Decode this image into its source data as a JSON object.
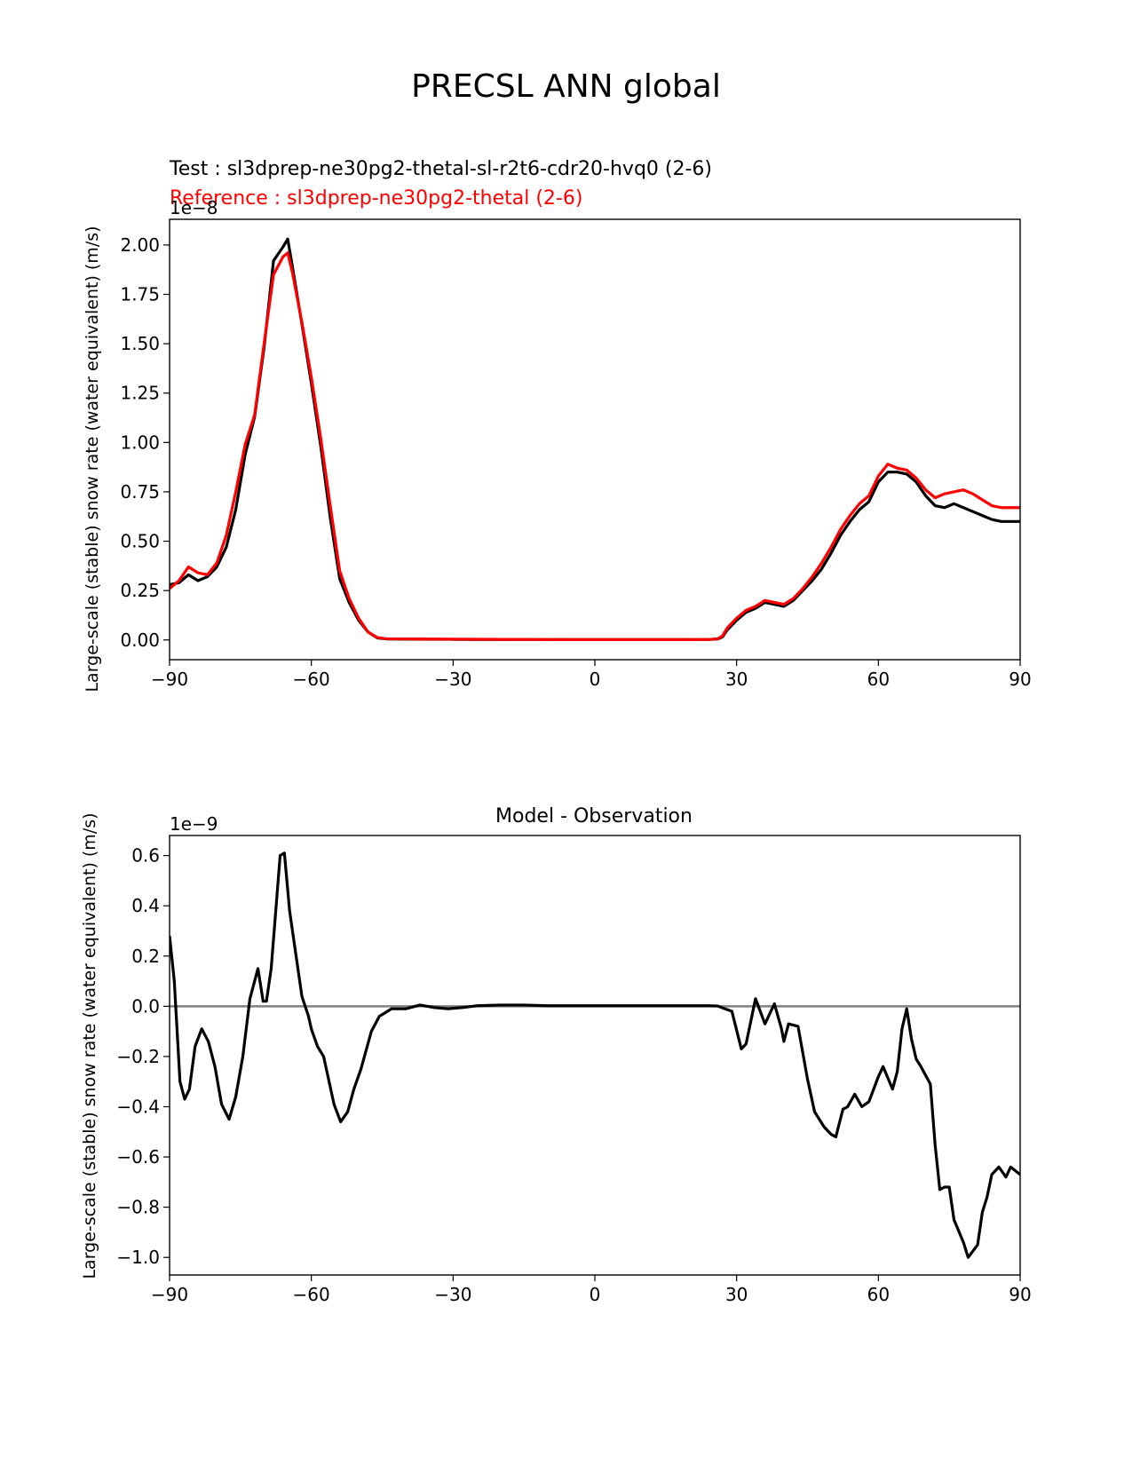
{
  "figure": {
    "title": "PRECSL ANN global"
  },
  "colors": {
    "test": "#000000",
    "reference": "#ff0000",
    "diff": "#000000",
    "zero_line": "#808080"
  },
  "chart_data": [
    {
      "type": "line",
      "test_label": "Test : sl3dprep-ne30pg2-thetal-sl-r2t6-cdr20-hvq0 (2-6)",
      "reference_label": "Reference : sl3dprep-ne30pg2-thetal (2-6)",
      "ylabel": "Large-scale (stable) snow rate (water equivalent) (m/s)",
      "offset_label": "1e−8",
      "xlim": [
        -90,
        90
      ],
      "ylim": [
        -0.1,
        2.13
      ],
      "xticks": [
        -90,
        -60,
        -30,
        0,
        30,
        60,
        90
      ],
      "xtick_labels": [
        "−90",
        "−60",
        "−30",
        "0",
        "30",
        "60",
        "90"
      ],
      "yticks": [
        0.0,
        0.25,
        0.5,
        0.75,
        1.0,
        1.25,
        1.5,
        1.75,
        2.0
      ],
      "ytick_labels": [
        "0.00",
        "0.25",
        "0.50",
        "0.75",
        "1.00",
        "1.25",
        "1.50",
        "1.75",
        "2.00"
      ],
      "series": [
        {
          "name": "Test",
          "x": [
            -90,
            -88,
            -86,
            -84,
            -82,
            -80,
            -78,
            -76,
            -74,
            -72,
            -70,
            -68,
            -66,
            -65,
            -64,
            -62,
            -60,
            -58,
            -56,
            -54,
            -52,
            -50,
            -48,
            -46,
            -44,
            -40,
            -30,
            -20,
            -10,
            0,
            10,
            20,
            24,
            26,
            27,
            28,
            30,
            32,
            34,
            36,
            38,
            40,
            42,
            44,
            46,
            48,
            50,
            52,
            54,
            56,
            58,
            60,
            62,
            64,
            66,
            68,
            70,
            72,
            74,
            76,
            78,
            80,
            82,
            84,
            86,
            88,
            90
          ],
          "values": [
            0.28,
            0.29,
            0.33,
            0.3,
            0.32,
            0.37,
            0.47,
            0.66,
            0.94,
            1.13,
            1.48,
            1.92,
            1.99,
            2.03,
            1.89,
            1.6,
            1.3,
            0.98,
            0.62,
            0.31,
            0.19,
            0.1,
            0.04,
            0.01,
            0.005,
            0.004,
            0.003,
            0.002,
            0.002,
            0.002,
            0.002,
            0.002,
            0.002,
            0.005,
            0.015,
            0.05,
            0.1,
            0.14,
            0.16,
            0.19,
            0.18,
            0.17,
            0.2,
            0.25,
            0.3,
            0.36,
            0.44,
            0.53,
            0.6,
            0.66,
            0.7,
            0.8,
            0.85,
            0.85,
            0.84,
            0.8,
            0.73,
            0.68,
            0.67,
            0.69,
            0.67,
            0.65,
            0.63,
            0.61,
            0.6,
            0.6,
            0.6
          ]
        },
        {
          "name": "Reference",
          "x": [
            -90,
            -88,
            -86,
            -84,
            -82,
            -80,
            -78,
            -76,
            -74,
            -72,
            -70,
            -68,
            -66,
            -65,
            -64,
            -62,
            -60,
            -58,
            -56,
            -54,
            -52,
            -50,
            -48,
            -46,
            -44,
            -40,
            -30,
            -20,
            -10,
            0,
            10,
            20,
            24,
            26,
            27,
            28,
            30,
            32,
            34,
            36,
            38,
            40,
            42,
            44,
            46,
            48,
            50,
            52,
            54,
            56,
            58,
            60,
            62,
            64,
            66,
            68,
            70,
            72,
            74,
            76,
            78,
            80,
            82,
            84,
            86,
            88,
            90
          ],
          "values": [
            0.26,
            0.3,
            0.37,
            0.34,
            0.33,
            0.39,
            0.53,
            0.75,
            0.99,
            1.14,
            1.5,
            1.85,
            1.94,
            1.96,
            1.86,
            1.61,
            1.33,
            1.02,
            0.68,
            0.35,
            0.21,
            0.11,
            0.04,
            0.012,
            0.006,
            0.005,
            0.004,
            0.003,
            0.002,
            0.002,
            0.002,
            0.002,
            0.002,
            0.006,
            0.02,
            0.06,
            0.11,
            0.15,
            0.17,
            0.2,
            0.19,
            0.18,
            0.21,
            0.26,
            0.32,
            0.39,
            0.47,
            0.56,
            0.63,
            0.69,
            0.73,
            0.83,
            0.89,
            0.87,
            0.86,
            0.82,
            0.76,
            0.72,
            0.74,
            0.75,
            0.76,
            0.74,
            0.71,
            0.68,
            0.67,
            0.67,
            0.67
          ]
        }
      ]
    },
    {
      "type": "line",
      "title": "Model - Observation",
      "ylabel": "Large-scale (stable) snow rate (water equivalent) (m/s)",
      "offset_label": "1e−9",
      "xlim": [
        -90,
        90
      ],
      "ylim": [
        -1.07,
        0.68
      ],
      "xticks": [
        -90,
        -60,
        -30,
        0,
        30,
        60,
        90
      ],
      "xtick_labels": [
        "−90",
        "−60",
        "−30",
        "0",
        "30",
        "60",
        "90"
      ],
      "yticks": [
        -1.0,
        -0.8,
        -0.6,
        -0.4,
        -0.2,
        0.0,
        0.2,
        0.4,
        0.6
      ],
      "ytick_labels": [
        "−1.0",
        "−0.8",
        "−0.6",
        "−0.4",
        "−0.2",
        "0.0",
        "0.2",
        "0.4",
        "0.6"
      ],
      "zero_line": 0.0,
      "series": [
        {
          "name": "Model - Observation",
          "x": [
            -90,
            -89,
            -87.8,
            -86.8,
            -85.8,
            -84.6,
            -83.2,
            -81.8,
            -80.4,
            -79,
            -77.4,
            -76,
            -74.5,
            -73,
            -71.3,
            -70.2,
            -69.5,
            -68.5,
            -66.6,
            -65.7,
            -64.6,
            -62,
            -60.6,
            -60,
            -58.7,
            -57.4,
            -55.2,
            -53.8,
            -52.3,
            -51,
            -49.5,
            -47.3,
            -45.6,
            -43,
            -40,
            -37,
            -34,
            -31,
            -28,
            -25,
            -20,
            -15,
            -10,
            -5,
            0,
            5,
            10,
            15,
            20,
            24,
            26,
            27.5,
            29,
            31,
            32,
            34,
            35,
            36,
            38,
            39.5,
            40,
            41,
            43,
            45,
            46.5,
            48.5,
            50,
            51,
            52.5,
            53.5,
            55,
            56.5,
            58,
            60,
            61,
            63,
            64,
            65,
            66,
            67,
            68,
            69,
            71,
            72,
            73,
            74,
            75,
            76,
            78,
            79,
            81,
            82,
            83,
            84,
            85.5,
            87,
            88,
            90
          ],
          "values": [
            0.28,
            0.1,
            -0.3,
            -0.37,
            -0.33,
            -0.16,
            -0.09,
            -0.14,
            -0.24,
            -0.39,
            -0.45,
            -0.36,
            -0.2,
            0.03,
            0.15,
            0.02,
            0.02,
            0.15,
            0.6,
            0.61,
            0.38,
            0.04,
            -0.04,
            -0.09,
            -0.16,
            -0.2,
            -0.39,
            -0.46,
            -0.42,
            -0.33,
            -0.25,
            -0.1,
            -0.04,
            -0.01,
            -0.01,
            0.005,
            -0.005,
            -0.01,
            -0.005,
            0.002,
            0.005,
            0.005,
            0.002,
            0.002,
            0.002,
            0.002,
            0.002,
            0.002,
            0.002,
            0.002,
            0.001,
            -0.01,
            -0.02,
            -0.17,
            -0.15,
            0.03,
            -0.02,
            -0.07,
            0.01,
            -0.09,
            -0.14,
            -0.07,
            -0.08,
            -0.29,
            -0.42,
            -0.48,
            -0.51,
            -0.52,
            -0.41,
            -0.4,
            -0.35,
            -0.4,
            -0.38,
            -0.28,
            -0.24,
            -0.33,
            -0.26,
            -0.09,
            -0.01,
            -0.13,
            -0.21,
            -0.24,
            -0.31,
            -0.55,
            -0.73,
            -0.72,
            -0.72,
            -0.85,
            -0.94,
            -1.0,
            -0.95,
            -0.82,
            -0.76,
            -0.67,
            -0.64,
            -0.68,
            -0.64,
            -0.67
          ]
        }
      ]
    }
  ]
}
